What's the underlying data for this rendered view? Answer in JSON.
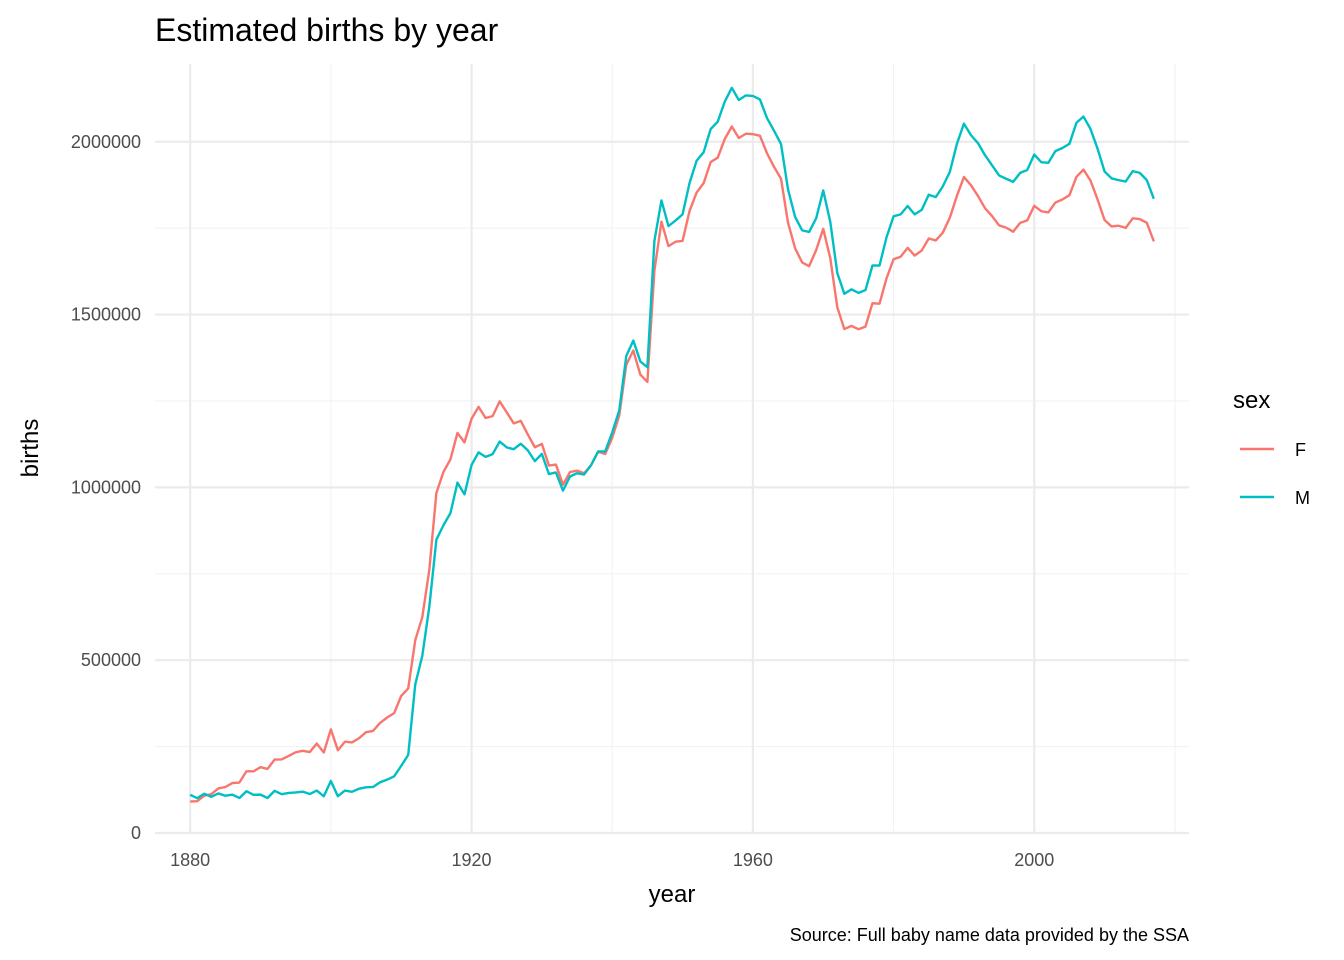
{
  "chart_data": {
    "type": "line",
    "title": "Estimated births by year",
    "xlabel": "year",
    "ylabel": "births",
    "caption": "Source: Full baby name data provided by the SSA",
    "xlim": [
      1875,
      2022
    ],
    "ylim": [
      0,
      2225000
    ],
    "x_ticks": [
      1880,
      1920,
      1960,
      2000
    ],
    "x_tick_labels": [
      "1880",
      "1920",
      "1960",
      "2000"
    ],
    "x_minor_ticks": [
      1900,
      1940,
      1980,
      2020
    ],
    "y_ticks": [
      0,
      500000,
      1000000,
      1500000,
      2000000
    ],
    "y_tick_labels": [
      "0",
      "500000",
      "1000000",
      "1500000",
      "2000000"
    ],
    "y_minor_ticks": [
      250000,
      750000,
      1250000,
      1750000
    ],
    "grid": true,
    "legend": {
      "title": "sex",
      "position": "right"
    },
    "x": [
      1880,
      1881,
      1882,
      1883,
      1884,
      1885,
      1886,
      1887,
      1888,
      1889,
      1890,
      1891,
      1892,
      1893,
      1894,
      1895,
      1896,
      1897,
      1898,
      1899,
      1900,
      1901,
      1902,
      1903,
      1904,
      1905,
      1906,
      1907,
      1908,
      1909,
      1910,
      1911,
      1912,
      1913,
      1914,
      1915,
      1916,
      1917,
      1918,
      1919,
      1920,
      1921,
      1922,
      1923,
      1924,
      1925,
      1926,
      1927,
      1928,
      1929,
      1930,
      1931,
      1932,
      1933,
      1934,
      1935,
      1936,
      1937,
      1938,
      1939,
      1940,
      1941,
      1942,
      1943,
      1944,
      1945,
      1946,
      1947,
      1948,
      1949,
      1950,
      1951,
      1952,
      1953,
      1954,
      1955,
      1956,
      1957,
      1958,
      1959,
      1960,
      1961,
      1962,
      1963,
      1964,
      1965,
      1966,
      1967,
      1968,
      1969,
      1970,
      1971,
      1972,
      1973,
      1974,
      1975,
      1976,
      1977,
      1978,
      1979,
      1980,
      1981,
      1982,
      1983,
      1984,
      1985,
      1986,
      1987,
      1988,
      1989,
      1990,
      1991,
      1992,
      1993,
      1994,
      1995,
      1996,
      1997,
      1998,
      1999,
      2000,
      2001,
      2002,
      2003,
      2004,
      2005,
      2006,
      2007,
      2008,
      2009,
      2010,
      2011,
      2012,
      2013,
      2014,
      2015,
      2016,
      2017
    ],
    "series": [
      {
        "name": "F",
        "color": "#F8766D",
        "values": [
          90993,
          91954,
          107849,
          112319,
          129019,
          133055,
          144533,
          145981,
          178622,
          178366,
          190376,
          185478,
          212345,
          212905,
          222922,
          233630,
          237920,
          234202,
          258770,
          233023,
          299822,
          239345,
          264077,
          261972,
          274152,
          291658,
          295448,
          318495,
          334182,
          346806,
          396436,
          418213,
          557967,
          624371,
          761420,
          983850,
          1044280,
          1081180,
          1157576,
          1130234,
          1198214,
          1232843,
          1200729,
          1206176,
          1248920,
          1217251,
          1185086,
          1192437,
          1153316,
          1116154,
          1125718,
          1063095,
          1066007,
          1007845,
          1044336,
          1048474,
          1040829,
          1064414,
          1103318,
          1096582,
          1143343,
          1207832,
          1354617,
          1396095,
          1325996,
          1305287,
          1627211,
          1768665,
          1698121,
          1710788,
          1713145,
          1800237,
          1852952,
          1880276,
          1941512,
          1953862,
          2008065,
          2044179,
          2010860,
          2023263,
          2022111,
          2017330,
          1967108,
          1927603,
          1892994,
          1765201,
          1691947,
          1650735,
          1640160,
          1686960,
          1748162,
          1663435,
          1521207,
          1458092,
          1467314,
          1457702,
          1465133,
          1532751,
          1531600,
          1605099,
          1660064,
          1667399,
          1693035,
          1670799,
          1685237,
          1720040,
          1714575,
          1736936,
          1780418,
          1843223,
          1897954,
          1874346,
          1843296,
          1807773,
          1785096,
          1758003,
          1751538,
          1739747,
          1765425,
          1772407,
          1814647,
          1799112,
          1795500,
          1824032,
          1833001,
          1845389,
          1898473,
          1919408,
          1887566,
          1833000,
          1773500,
          1754900,
          1757066,
          1750800,
          1778500,
          1776500,
          1765400,
          1711800
        ]
      },
      {
        "name": "M",
        "color": "#00BFC4",
        "values": [
          110491,
          100745,
          113688,
          104629,
          114445,
          107800,
          110785,
          101415,
          120853,
          110584,
          111025,
          101196,
          122037,
          112317,
          115772,
          117398,
          119575,
          112758,
          122693,
          106212,
          150499,
          106472,
          122660,
          119233,
          128125,
          132319,
          133159,
          146835,
          154339,
          163983,
          194209,
          225964,
          429926,
          512482,
          654746,
          848647,
          890142,
          925492,
          1013720,
          979820,
          1064468,
          1101372,
          1088380,
          1096227,
          1132671,
          1115798,
          1110440,
          1126259,
          1107113,
          1075975,
          1096929,
          1038586,
          1043198,
          990677,
          1031535,
          1040895,
          1037156,
          1064432,
          1103911,
          1103912,
          1158716,
          1222844,
          1380210,
          1424825,
          1364213,
          1347640,
          1713405,
          1830244,
          1756003,
          1771991,
          1789979,
          1881103,
          1945018,
          1969830,
          2036853,
          2058134,
          2116043,
          2156037,
          2120850,
          2134127,
          2132722,
          2122451,
          2068962,
          2032104,
          1993285,
          1861564,
          1782519,
          1743657,
          1739150,
          1779001,
          1859113,
          1768210,
          1620232,
          1560117,
          1573008,
          1562934,
          1570596,
          1642000,
          1641700,
          1723730,
          1784275,
          1789907,
          1814213,
          1790005,
          1802878,
          1846732,
          1839906,
          1871008,
          1912913,
          1993713,
          2052432,
          2019163,
          1996003,
          1961009,
          1931796,
          1902500,
          1893004,
          1884030,
          1910031,
          1918267,
          1963045,
          1941011,
          1939007,
          1973005,
          1982017,
          1994069,
          2055111,
          2073000,
          2037000,
          1980000,
          1914000,
          1894000,
          1889000,
          1885000,
          1915000,
          1910000,
          1889000,
          1835000
        ]
      }
    ]
  }
}
